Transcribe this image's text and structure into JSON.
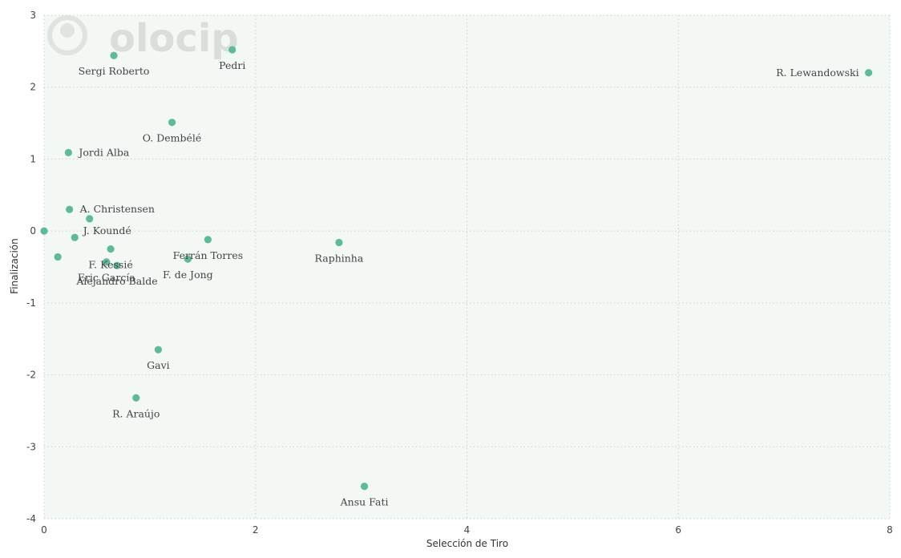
{
  "chart_data": {
    "type": "scatter",
    "title": "",
    "xlabel": "Selección de Tiro",
    "ylabel": "Finalización",
    "xlim": [
      0,
      8
    ],
    "ylim": [
      -4,
      3
    ],
    "x_ticks": [
      0,
      2,
      4,
      6,
      8
    ],
    "y_ticks": [
      -4,
      -3,
      -2,
      -1,
      0,
      1,
      2,
      3
    ],
    "grid": true,
    "point_color": "#5fba9a",
    "plot_background": "#f3f8f5",
    "points": [
      {
        "label": "R. Lewandowski",
        "x": 7.8,
        "y": 2.2
      },
      {
        "label": "Pedri",
        "x": 1.78,
        "y": 2.52
      },
      {
        "label": "Sergi Roberto",
        "x": 0.66,
        "y": 2.44
      },
      {
        "label": "O. Dembélé",
        "x": 1.21,
        "y": 1.51
      },
      {
        "label": "Jordi Alba",
        "x": 0.23,
        "y": 1.09
      },
      {
        "label": "A. Christensen",
        "x": 0.24,
        "y": 0.3
      },
      {
        "label": "J. Koundé",
        "x": 0.43,
        "y": 0.17
      },
      {
        "label": "",
        "x": 0.0,
        "y": 0.0
      },
      {
        "label": "",
        "x": 0.29,
        "y": -0.09
      },
      {
        "label": "",
        "x": 0.13,
        "y": -0.36
      },
      {
        "label": "F. Kessié",
        "x": 0.63,
        "y": -0.25
      },
      {
        "label": "Eric García",
        "x": 0.59,
        "y": -0.43
      },
      {
        "label": "Alejandro Balde",
        "x": 0.69,
        "y": -0.48
      },
      {
        "label": "Ferrán Torres",
        "x": 1.55,
        "y": -0.12
      },
      {
        "label": "F. de Jong",
        "x": 1.36,
        "y": -0.39
      },
      {
        "label": "Raphinha",
        "x": 2.79,
        "y": -0.16
      },
      {
        "label": "Gavi",
        "x": 1.08,
        "y": -1.65
      },
      {
        "label": "R. Araújo",
        "x": 0.87,
        "y": -2.32
      },
      {
        "label": "Ansu Fati",
        "x": 3.03,
        "y": -3.55
      }
    ]
  },
  "watermark": {
    "text": "olocip",
    "icon": "olocip-logo-icon"
  }
}
